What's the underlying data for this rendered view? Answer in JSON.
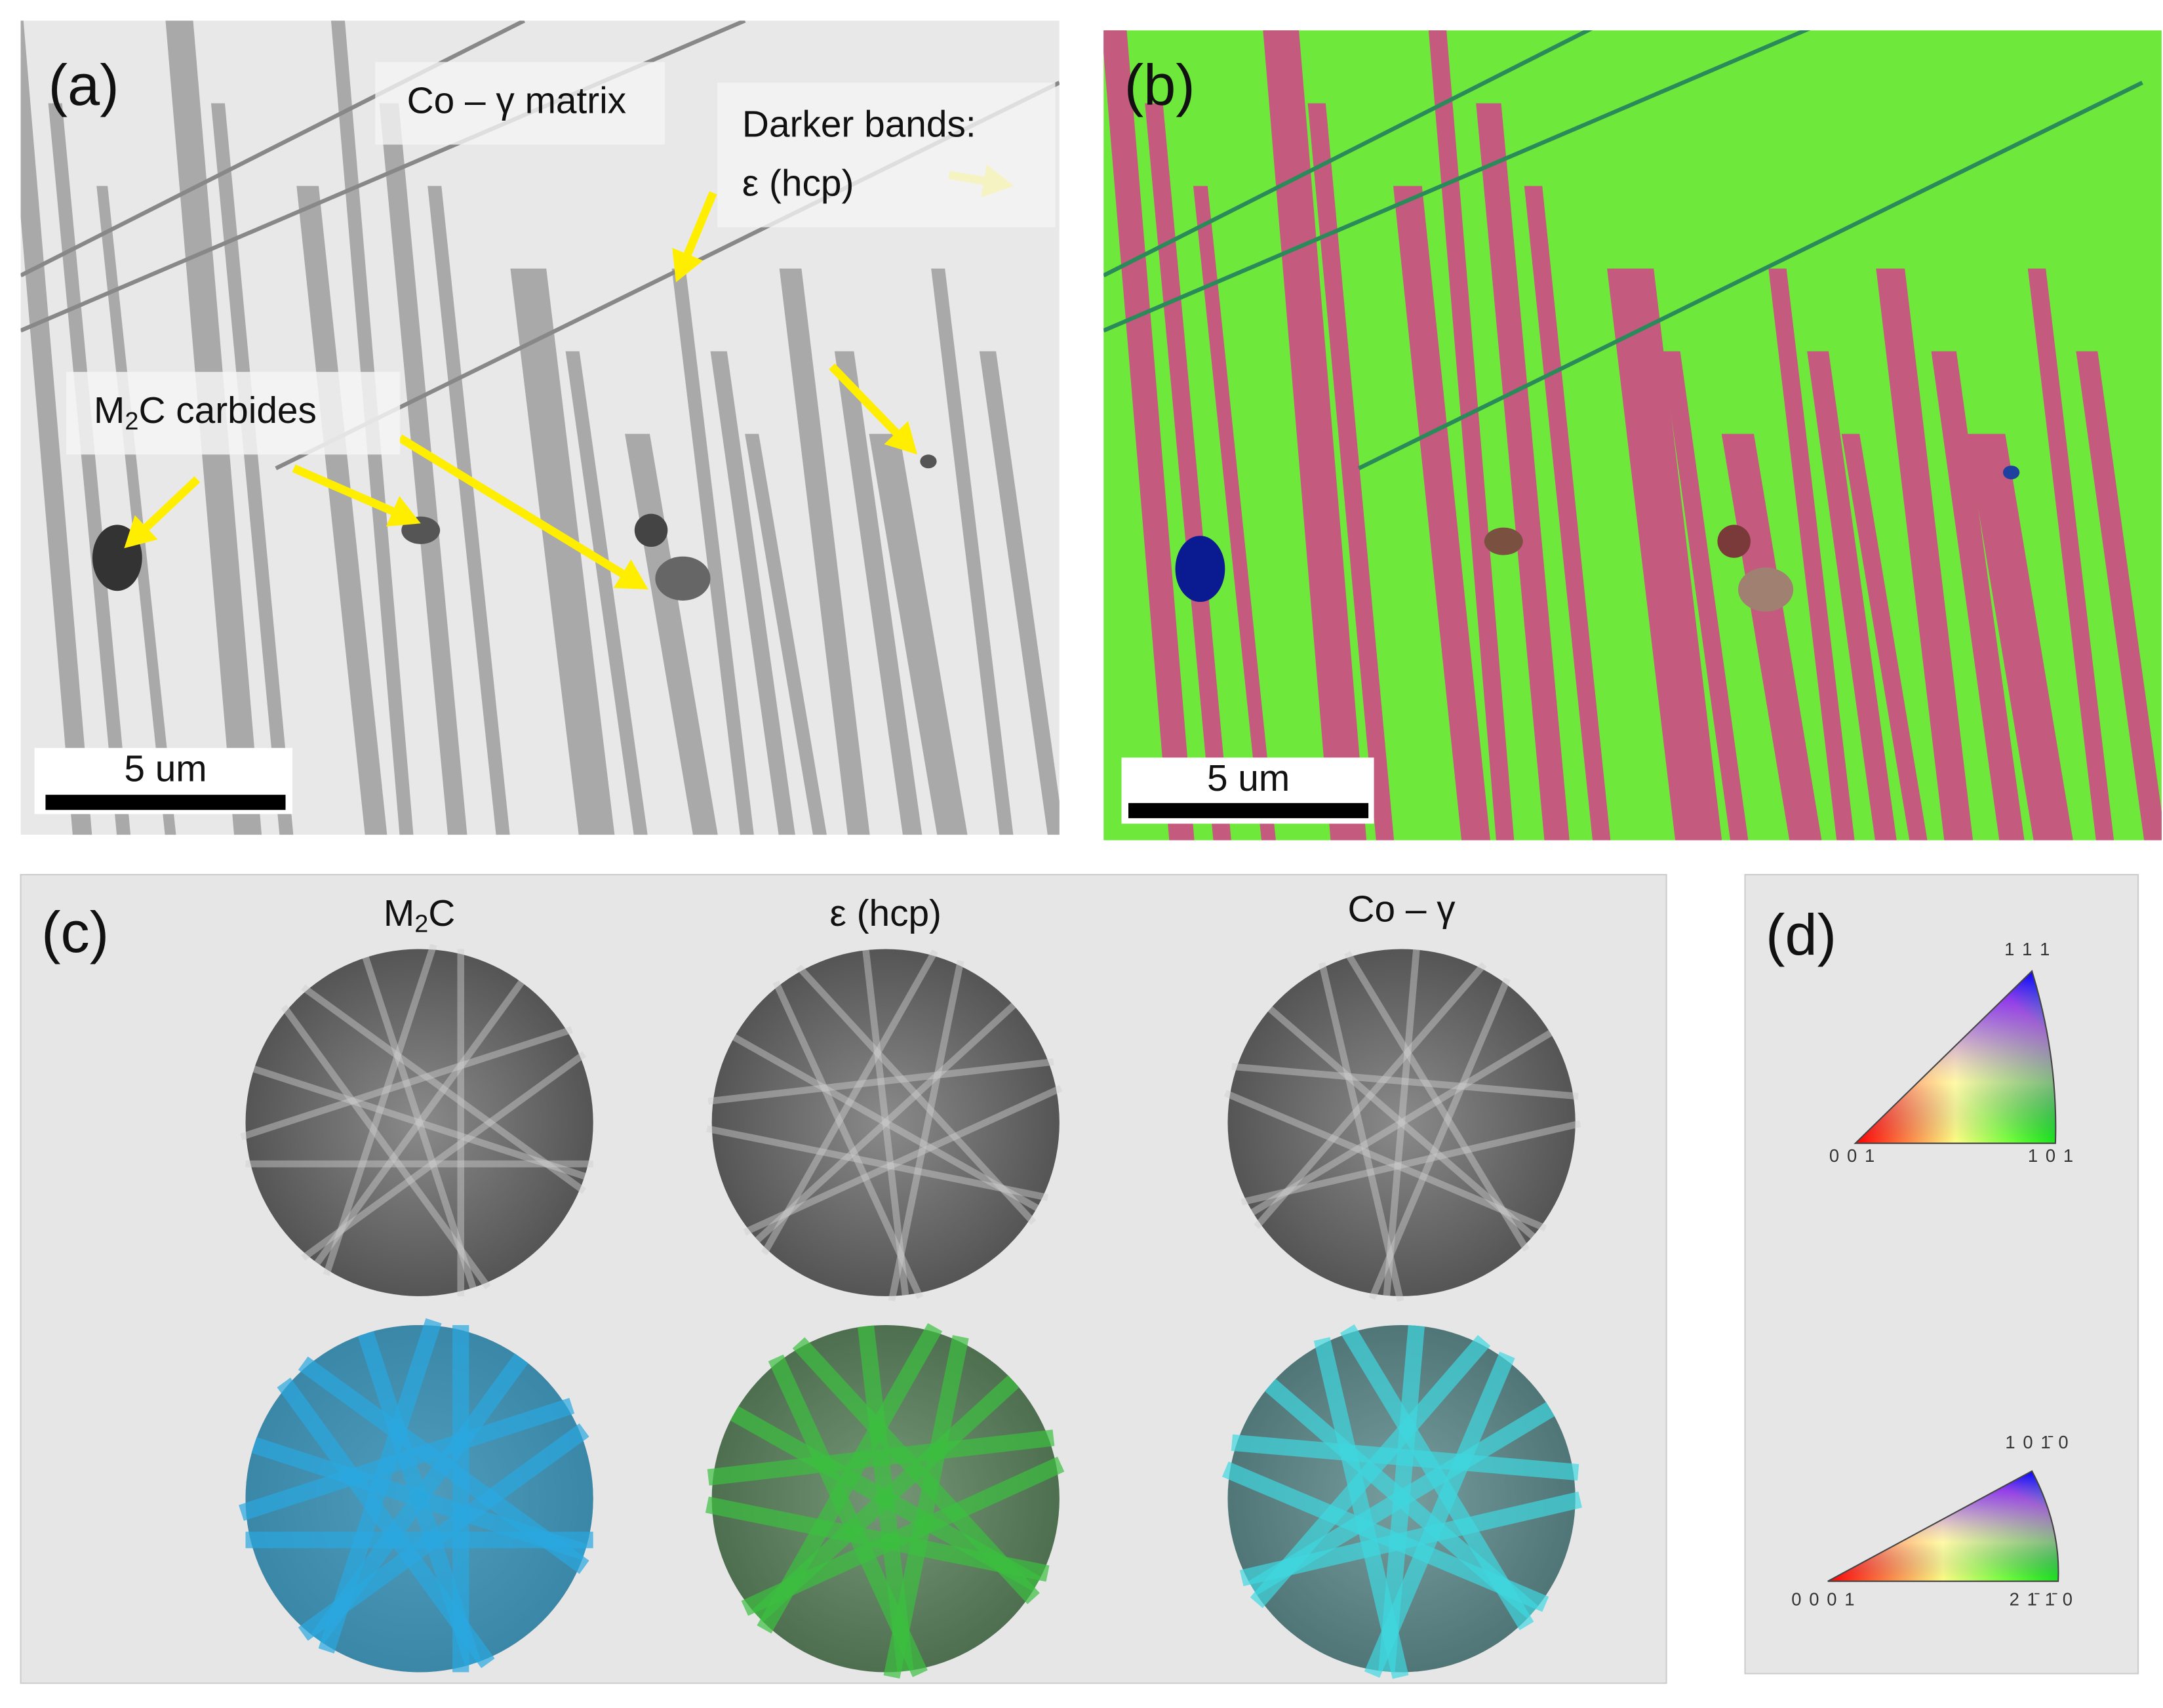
{
  "panels": {
    "a": {
      "label": "(a)",
      "matrix_label": "Co – γ matrix",
      "bands_label": "Darker bands:",
      "bands_phase": "ε (hcp)",
      "carbides_label": {
        "base": "M",
        "sub": "2",
        "rest": "C carbides"
      },
      "scale_bar": "5 um"
    },
    "b": {
      "label": "(b)",
      "scale_bar": "5 um"
    },
    "c": {
      "label": "(c)",
      "patterns": [
        {
          "title": {
            "base": "M",
            "sub": "2",
            "rest": "C"
          }
        },
        {
          "title": {
            "base": "ε (hcp)",
            "sub": "",
            "rest": ""
          }
        },
        {
          "title": {
            "base": "Co – γ",
            "sub": "",
            "rest": ""
          }
        }
      ]
    },
    "d": {
      "label": "(d)",
      "cubic": {
        "top": "1 1 1",
        "left": "0 0 1",
        "right": "1 0 1"
      },
      "hexagonal": {
        "top": "1 0 1̄ 0",
        "left": "0 0 0 1",
        "right": "2 1̄ 1̄ 0"
      }
    }
  }
}
